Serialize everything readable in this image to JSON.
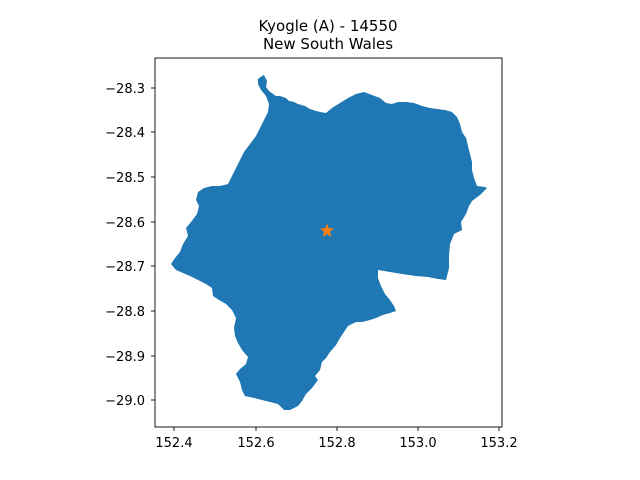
{
  "map": {
    "title_line1": "Kyogle (A) - 14550",
    "title_line2": "New South Wales",
    "x_ticks": [
      "152.4",
      "152.6",
      "152.8",
      "153.0",
      "153.2"
    ],
    "y_ticks": [
      "−28.3",
      "−28.4",
      "−28.5",
      "−28.6",
      "−28.7",
      "−28.8",
      "−28.9",
      "−29.0"
    ],
    "region_color": "#1f77b4",
    "marker_color": "#ff7f0e",
    "marker_symbol": "star"
  },
  "chart_data": {
    "type": "map",
    "title": "Kyogle (A) - 14550\nNew South Wales",
    "xlim": [
      152.35,
      153.21
    ],
    "ylim": [
      -29.06,
      -28.24
    ],
    "x_ticks": [
      152.4,
      152.6,
      152.8,
      153.0,
      153.2
    ],
    "y_ticks": [
      -28.3,
      -28.4,
      -28.5,
      -28.6,
      -28.7,
      -28.8,
      -28.9,
      -29.0
    ],
    "centroid": {
      "lon": 152.777,
      "lat": -28.617
    },
    "grid": false
  }
}
